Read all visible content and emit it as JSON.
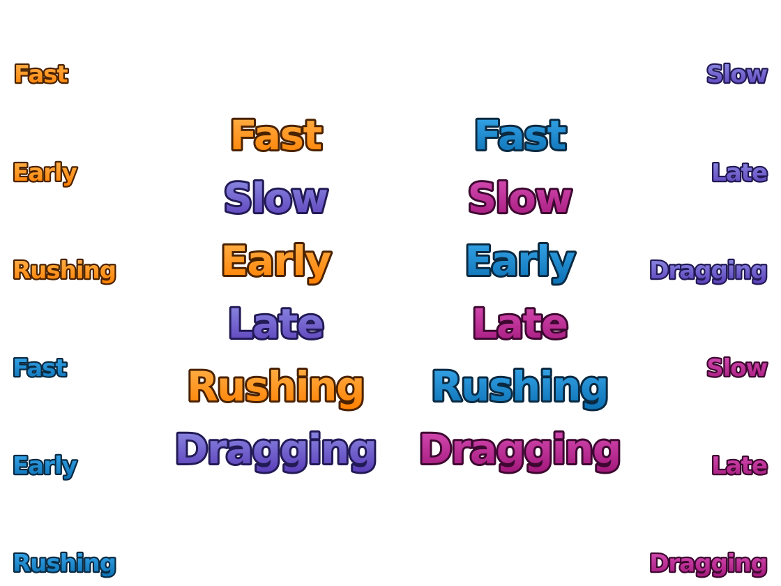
{
  "palettes": {
    "orange": {
      "top": "#ffb34d",
      "bottom": "#ff7f00",
      "outline": "#4a2200"
    },
    "blue": {
      "top": "#39a9ec",
      "bottom": "#0b6fb3",
      "outline": "#0a2a42"
    },
    "purple": {
      "top": "#8f8fe6",
      "bottom": "#5a3db8",
      "outline": "#221a55"
    },
    "magenta": {
      "top": "#d84fb6",
      "bottom": "#a3177a",
      "outline": "#3d0830"
    }
  },
  "left_column": [
    {
      "text": "Fast",
      "palette": "orange"
    },
    {
      "text": "Early",
      "palette": "orange"
    },
    {
      "text": "Rushing",
      "palette": "orange"
    },
    {
      "text": "Fast",
      "palette": "blue"
    },
    {
      "text": "Early",
      "palette": "blue"
    },
    {
      "text": "Rushing",
      "palette": "blue"
    }
  ],
  "center_left_column": [
    {
      "text": "Fast",
      "palette": "orange"
    },
    {
      "text": "Slow",
      "palette": "purple"
    },
    {
      "text": "Early",
      "palette": "orange"
    },
    {
      "text": "Late",
      "palette": "purple"
    },
    {
      "text": "Rushing",
      "palette": "orange"
    },
    {
      "text": "Dragging",
      "palette": "purple"
    }
  ],
  "center_right_column": [
    {
      "text": "Fast",
      "palette": "blue"
    },
    {
      "text": "Slow",
      "palette": "magenta"
    },
    {
      "text": "Early",
      "palette": "blue"
    },
    {
      "text": "Late",
      "palette": "magenta"
    },
    {
      "text": "Rushing",
      "palette": "blue"
    },
    {
      "text": "Dragging",
      "palette": "magenta"
    }
  ],
  "right_column": [
    {
      "text": "Slow",
      "palette": "purple"
    },
    {
      "text": "Late",
      "palette": "purple"
    },
    {
      "text": "Dragging",
      "palette": "purple"
    },
    {
      "text": "Slow",
      "palette": "magenta"
    },
    {
      "text": "Late",
      "palette": "magenta"
    },
    {
      "text": "Dragging",
      "palette": "magenta"
    }
  ]
}
